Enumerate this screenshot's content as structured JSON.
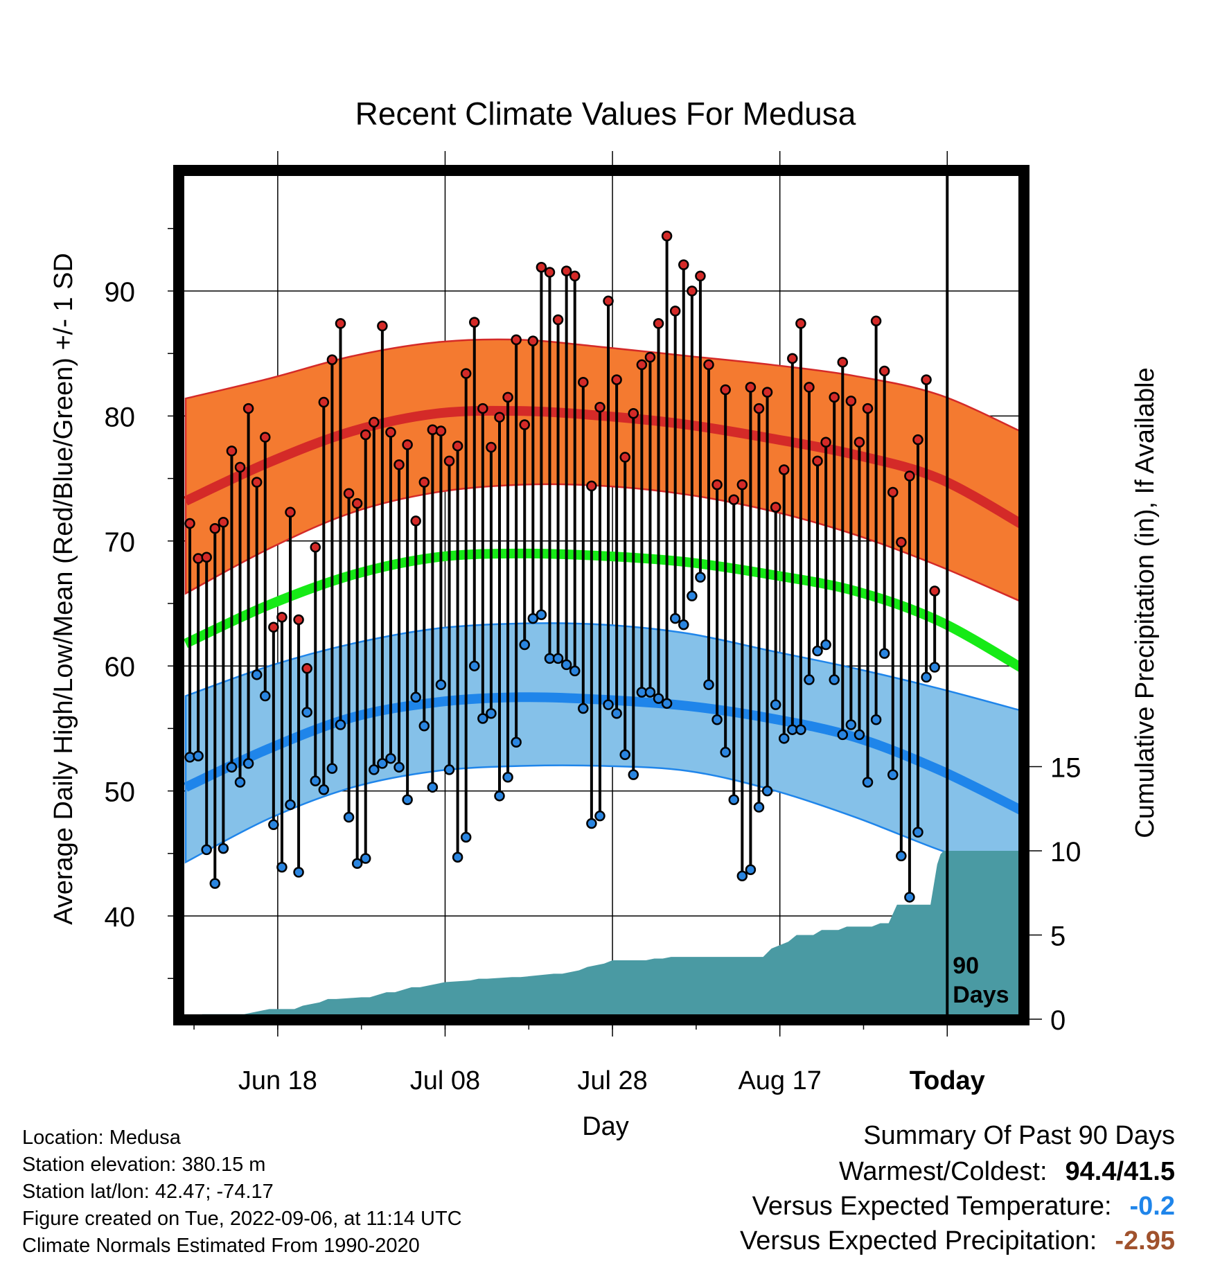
{
  "chart_data": {
    "type": "line",
    "title": "Recent Climate Values For Medusa",
    "xlabel": "Day",
    "ylabel_left": "Average Daily High/Low/Mean (Red/Blue/Green) +/- 1 SD",
    "ylabel_right": "Cumulative Precipitation (in), If Available",
    "x_tick_labels": [
      "Jun 18",
      "Jul 08",
      "Jul 28",
      "Aug 17",
      "Today"
    ],
    "x_tick_days": [
      11,
      31,
      51,
      71,
      91
    ],
    "x_range": [
      0,
      100
    ],
    "y_left_range": [
      32,
      100
    ],
    "y_left_ticks": [
      40,
      50,
      60,
      70,
      80,
      90
    ],
    "y_right_ticks": [
      0,
      5,
      10,
      15
    ],
    "today_label": "90\nDays",
    "today_day": 91,
    "colors": {
      "high_band": "#f47a30",
      "high_line": "#d42a28",
      "low_band": "#85c1e9",
      "low_line": "#1f85ea",
      "mean_line": "#16ea16",
      "precip": "#4a9aa3",
      "high_dot": "#d42a28",
      "low_dot": "#2a85e0"
    },
    "normals": {
      "days": [
        0,
        10,
        20,
        30,
        40,
        50,
        60,
        70,
        80,
        90,
        100
      ],
      "high_mean": [
        73.2,
        76.3,
        78.8,
        80.2,
        80.4,
        80.0,
        79.3,
        78.2,
        76.9,
        75.0,
        71.3
      ],
      "high_upper": [
        81.4,
        83.0,
        84.8,
        85.9,
        86.1,
        85.5,
        84.8,
        84.1,
        83.2,
        81.7,
        78.7
      ],
      "high_lower": [
        65.8,
        69.4,
        72.3,
        73.9,
        74.5,
        74.4,
        73.7,
        72.4,
        70.5,
        68.0,
        65.1
      ],
      "mean": [
        61.8,
        64.9,
        67.3,
        68.7,
        69.0,
        68.8,
        68.3,
        67.3,
        66.0,
        63.6,
        59.8
      ],
      "low_mean": [
        50.3,
        53.4,
        55.9,
        57.1,
        57.5,
        57.3,
        56.8,
        55.8,
        54.3,
        51.7,
        48.4
      ],
      "low_upper": [
        57.6,
        60.0,
        61.8,
        63.0,
        63.4,
        63.3,
        62.6,
        61.2,
        59.8,
        58.2,
        56.4
      ],
      "low_lower": [
        44.3,
        47.8,
        50.3,
        51.6,
        52.0,
        52.0,
        51.6,
        50.1,
        47.9,
        45.3,
        43.0
      ]
    },
    "daily_high": [
      71.4,
      68.6,
      68.7,
      71.0,
      71.5,
      77.2,
      75.9,
      80.6,
      74.7,
      78.3,
      63.1,
      63.9,
      72.3,
      63.7,
      59.8,
      69.5,
      81.1,
      84.5,
      87.4,
      73.8,
      73.0,
      78.5,
      79.5,
      87.2,
      78.7,
      76.1,
      77.7,
      71.6,
      74.7,
      78.9,
      78.8,
      76.4,
      77.6,
      83.4,
      87.5,
      80.6,
      77.5,
      79.9,
      81.5,
      86.1,
      79.3,
      86.0,
      91.9,
      91.5,
      87.7,
      91.6,
      91.2,
      82.7,
      74.4,
      80.7,
      89.2,
      82.9,
      76.7,
      80.2,
      84.1,
      84.7,
      87.4,
      94.4,
      88.4,
      92.1,
      90.0,
      91.2,
      84.1,
      74.5,
      82.1,
      73.3,
      74.5,
      82.3,
      80.6,
      81.9,
      72.7,
      75.7,
      84.6,
      87.4,
      82.3,
      76.4,
      77.9,
      81.5,
      84.3,
      81.2,
      77.9,
      80.6,
      87.6,
      83.6,
      73.9,
      69.9,
      75.2,
      78.1,
      82.9,
      66.0
    ],
    "daily_low": [
      52.7,
      52.8,
      45.3,
      42.6,
      45.4,
      51.9,
      50.7,
      52.2,
      59.3,
      57.6,
      47.3,
      43.9,
      48.9,
      43.5,
      56.3,
      50.8,
      50.1,
      51.8,
      55.3,
      47.9,
      44.2,
      44.6,
      51.7,
      52.2,
      52.6,
      51.9,
      49.3,
      57.5,
      55.2,
      50.3,
      58.5,
      51.7,
      44.7,
      46.3,
      60.0,
      55.8,
      56.2,
      49.6,
      51.1,
      53.9,
      61.7,
      63.8,
      64.1,
      60.6,
      60.6,
      60.1,
      59.6,
      56.6,
      47.4,
      48.0,
      56.9,
      56.2,
      52.9,
      51.3,
      57.9,
      57.9,
      57.4,
      57.0,
      63.8,
      63.3,
      65.6,
      67.1,
      58.5,
      55.7,
      53.1,
      49.3,
      43.2,
      43.7,
      48.7,
      50.0,
      56.9,
      54.2,
      54.9,
      54.9,
      58.9,
      61.2,
      61.7,
      58.9,
      54.5,
      55.3,
      54.5,
      50.7,
      55.7,
      61.0,
      51.3,
      44.8,
      41.5,
      46.7,
      59.1,
      59.9
    ],
    "precip_days": [
      0,
      2,
      6,
      7,
      10,
      11,
      13,
      14,
      16,
      17,
      18,
      21,
      22,
      24,
      25,
      27,
      28,
      31,
      34,
      35,
      36,
      39,
      40,
      44,
      45,
      47,
      48,
      50,
      51,
      55,
      56,
      57,
      58,
      61,
      62,
      65,
      66,
      69,
      70,
      72,
      73,
      75,
      76,
      78,
      79,
      82,
      83,
      84,
      85,
      86,
      87,
      88,
      89,
      89.4,
      89.8,
      90.2,
      90.6,
      91,
      100
    ],
    "precip_values": [
      0.0,
      0.3,
      0.3,
      0.3,
      0.6,
      0.6,
      0.6,
      0.8,
      1.0,
      1.2,
      1.2,
      1.3,
      1.3,
      1.6,
      1.6,
      1.9,
      1.9,
      2.2,
      2.3,
      2.4,
      2.4,
      2.5,
      2.5,
      2.7,
      2.7,
      2.9,
      3.1,
      3.3,
      3.5,
      3.5,
      3.6,
      3.6,
      3.7,
      3.7,
      3.7,
      3.7,
      3.7,
      3.7,
      4.2,
      4.6,
      5.0,
      5.0,
      5.3,
      5.3,
      5.5,
      5.5,
      5.7,
      5.7,
      6.8,
      6.8,
      6.8,
      6.8,
      6.8,
      8.0,
      9.2,
      9.8,
      10.0,
      10.0,
      10.0
    ]
  },
  "info": {
    "location": "Location: Medusa",
    "elevation": "Station elevation: 380.15 m",
    "latlon": "Station lat/lon: 42.47; -74.17",
    "created": "Figure created on Tue, 2022-09-06, at 11:14 UTC",
    "normals": "Climate Normals Estimated From 1990-2020"
  },
  "summary": {
    "title": "Summary Of Past 90 Days",
    "warmest_label": "Warmest/Coldest:",
    "warmest_value": "94.4/41.5",
    "temp_label": "Versus Expected Temperature:",
    "temp_value": "-0.2",
    "temp_color": "#1f85ea",
    "precip_label": "Versus Expected Precipitation:",
    "precip_value": "-2.95",
    "precip_color": "#a0522d"
  }
}
